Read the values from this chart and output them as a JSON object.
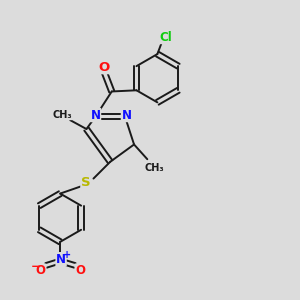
{
  "bg_color": "#dcdcdc",
  "bond_color": "#1a1a1a",
  "atom_colors": {
    "N": "#1010ff",
    "O": "#ff1010",
    "S": "#b8b800",
    "Cl": "#10cc10",
    "C": "#1a1a1a"
  },
  "font_size": 8.5,
  "bond_width": 1.4,
  "dbo": 0.008
}
